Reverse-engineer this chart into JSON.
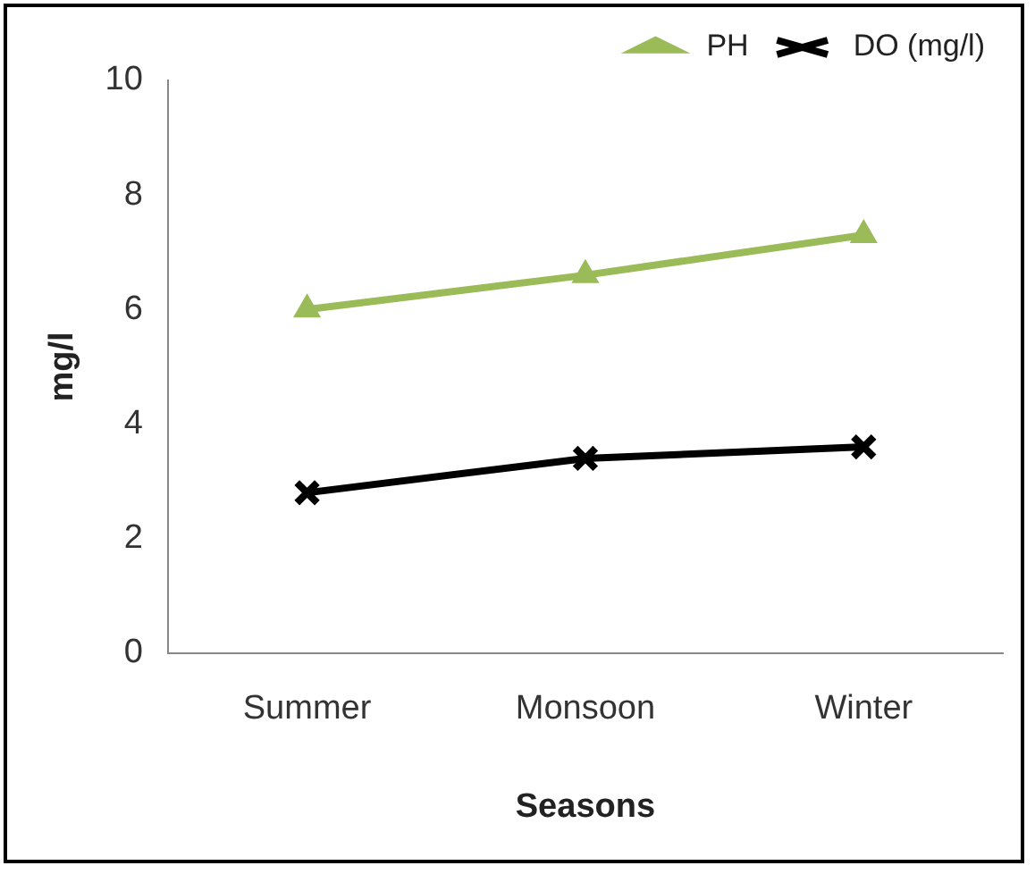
{
  "chart_data": {
    "type": "line",
    "xlabel": "Seasons",
    "ylabel": "mg/l",
    "categories": [
      "Summer",
      "Monsoon",
      "Winter"
    ],
    "series": [
      {
        "name": "PH",
        "color": "#9bbb59",
        "marker": "triangle",
        "values": [
          6.0,
          6.6,
          7.3
        ]
      },
      {
        "name": "DO (mg/l)",
        "color": "#000000",
        "marker": "cross",
        "values": [
          2.8,
          3.4,
          3.6
        ]
      }
    ],
    "ylim": [
      0,
      10
    ],
    "yticks": [
      0,
      2,
      4,
      6,
      8,
      10
    ],
    "grid": false,
    "legend": "top right",
    "line_style": "solid"
  }
}
